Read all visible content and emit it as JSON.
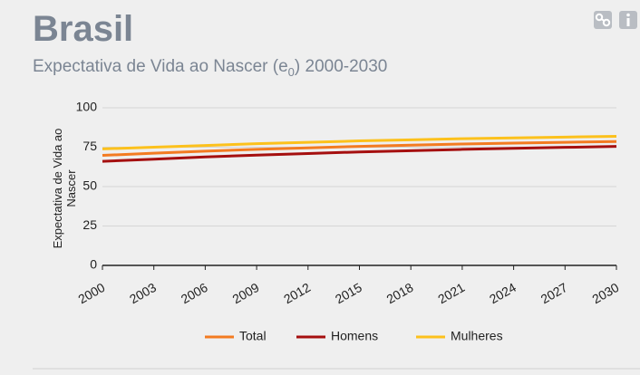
{
  "chart_data": {
    "type": "line",
    "title": "Brasil",
    "subtitle_main": "Expectativa de Vida ao Nascer (e",
    "subtitle_sub": "0",
    "subtitle_end": ") 2000-2030",
    "ylabel": "Expectativa de Vida ao Nascer",
    "x": [
      2000,
      2003,
      2006,
      2009,
      2012,
      2015,
      2018,
      2021,
      2024,
      2027,
      2030
    ],
    "xlim": [
      2000,
      2030
    ],
    "xticks": [
      2000,
      2003,
      2006,
      2009,
      2012,
      2015,
      2018,
      2021,
      2024,
      2027,
      2030
    ],
    "ylim": [
      0,
      100
    ],
    "yticks": [
      0,
      25,
      50,
      75,
      100
    ],
    "grid": true,
    "legend": "bottom",
    "series": [
      {
        "name": "Total",
        "color": "#f37b21",
        "values": [
          69.8,
          71.2,
          72.5,
          73.6,
          74.6,
          75.5,
          76.3,
          77.0,
          77.6,
          78.1,
          78.6
        ]
      },
      {
        "name": "Homens",
        "color": "#a50f0f",
        "values": [
          66.0,
          67.4,
          68.8,
          70.0,
          71.0,
          72.0,
          72.8,
          73.6,
          74.3,
          74.9,
          75.5
        ]
      },
      {
        "name": "Mulheres",
        "color": "#fcc11c",
        "values": [
          73.9,
          75.0,
          76.1,
          77.2,
          78.1,
          79.0,
          79.7,
          80.4,
          80.9,
          81.4,
          81.9
        ]
      }
    ]
  }
}
